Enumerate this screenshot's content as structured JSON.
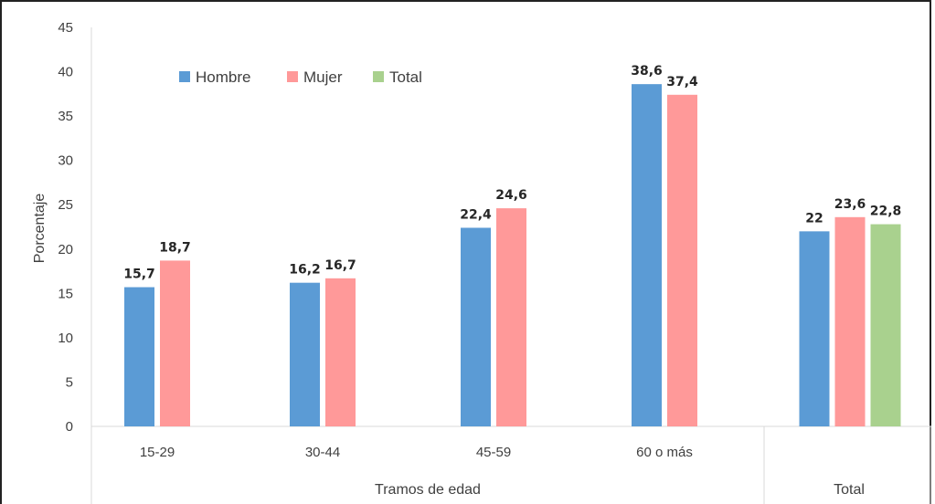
{
  "chart_data": {
    "type": "bar",
    "ylabel": "Porcentaje",
    "xlabel": "Tramos de edad",
    "ylim": [
      0,
      45
    ],
    "yticks": [
      0,
      5,
      10,
      15,
      20,
      25,
      30,
      35,
      40,
      45
    ],
    "legend_position": "top-left",
    "groups": [
      {
        "category": "15-29",
        "section": "Tramos de edad",
        "values": {
          "Hombre": 15.7,
          "Mujer": 18.7
        },
        "labels": {
          "Hombre": "15,7",
          "Mujer": "18,7"
        }
      },
      {
        "category": "30-44",
        "section": "Tramos de edad",
        "values": {
          "Hombre": 16.2,
          "Mujer": 16.7
        },
        "labels": {
          "Hombre": "16,2",
          "Mujer": "16,7"
        }
      },
      {
        "category": "45-59",
        "section": "Tramos de edad",
        "values": {
          "Hombre": 22.4,
          "Mujer": 24.6
        },
        "labels": {
          "Hombre": "22,4",
          "Mujer": "24,6"
        }
      },
      {
        "category": "60 o más",
        "section": "Tramos de edad",
        "values": {
          "Hombre": 38.6,
          "Mujer": 37.4
        },
        "labels": {
          "Hombre": "38,6",
          "Mujer": "37,4"
        }
      },
      {
        "category": "",
        "section": "Total",
        "values": {
          "Hombre": 22,
          "Mujer": 23.6,
          "Total": 22.8
        },
        "labels": {
          "Hombre": "22",
          "Mujer": "23,6",
          "Total": "22,8"
        }
      }
    ],
    "series": [
      {
        "name": "Hombre",
        "color": "#5b9bd5"
      },
      {
        "name": "Mujer",
        "color": "#ff9999"
      },
      {
        "name": "Total",
        "color": "#a9d18e"
      }
    ],
    "sections": [
      "Tramos de edad",
      "Total"
    ],
    "grid": false
  }
}
